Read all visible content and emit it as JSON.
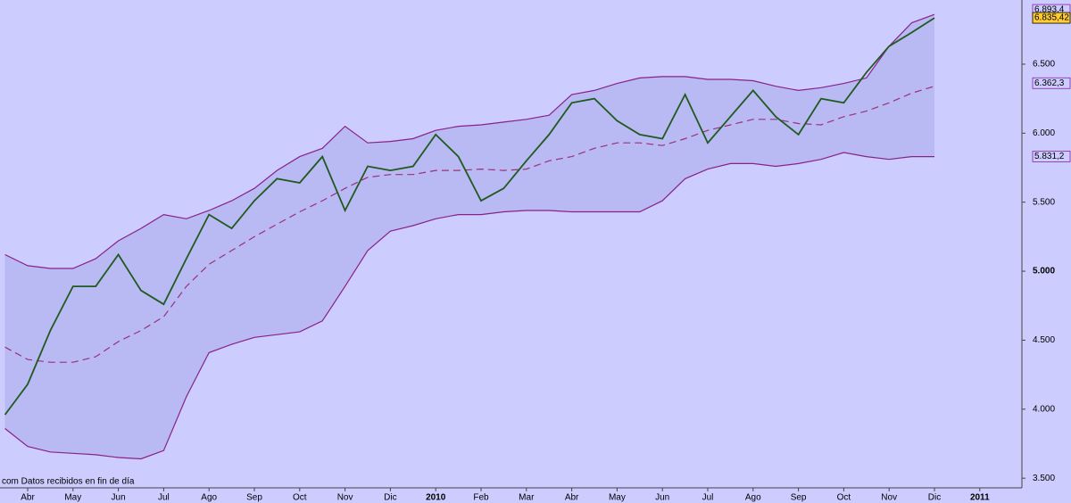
{
  "chart_data": {
    "type": "line",
    "categories": [
      null,
      "Abr",
      null,
      "May",
      null,
      "Jun",
      null,
      "Jul",
      null,
      "Ago",
      null,
      "Sep",
      null,
      "Oct",
      null,
      "Nov",
      null,
      "Dic",
      null,
      "2010",
      null,
      "Feb",
      null,
      "Mar",
      null,
      "Abr",
      null,
      "May",
      null,
      "Jun",
      null,
      "Jul",
      null,
      "Ago",
      null,
      "Sep",
      null,
      "Oct",
      null,
      "Nov",
      null,
      "Dic",
      null,
      "2011"
    ],
    "series": [
      {
        "color": "#882288",
        "fill": "#b9b9f3",
        "values": [
          5120,
          5040,
          5020,
          5020,
          5090,
          5220,
          5310,
          5410,
          5380,
          5440,
          5510,
          5600,
          5730,
          5830,
          5890,
          6050,
          5930,
          5940,
          5960,
          6020,
          6050,
          6060,
          6080,
          6100,
          6130,
          6280,
          6310,
          6360,
          6400,
          6410,
          6410,
          6390,
          6390,
          6380,
          6340,
          6310,
          6330,
          6360,
          6400,
          6630,
          6800,
          6860,
          null,
          null
        ]
      },
      {
        "color": "#882288",
        "values": [
          3860,
          3730,
          3690,
          3680,
          3670,
          3650,
          3640,
          3700,
          4090,
          4410,
          4470,
          4520,
          4540,
          4560,
          4640,
          4890,
          5150,
          5290,
          5330,
          5380,
          5410,
          5410,
          5430,
          5440,
          5440,
          5430,
          5430,
          5430,
          5430,
          5510,
          5670,
          5740,
          5780,
          5780,
          5760,
          5780,
          5810,
          5860,
          5830,
          5810,
          5830,
          5830,
          null,
          null
        ]
      },
      {
        "color": "#993377",
        "dashed": true,
        "values": [
          4450,
          4360,
          4340,
          4340,
          4380,
          4490,
          4570,
          4670,
          4890,
          5050,
          5150,
          5250,
          5340,
          5430,
          5510,
          5600,
          5680,
          5700,
          5700,
          5730,
          5730,
          5740,
          5730,
          5740,
          5800,
          5830,
          5890,
          5930,
          5930,
          5910,
          5960,
          6020,
          6060,
          6100,
          6100,
          6070,
          6060,
          6120,
          6160,
          6220,
          6290,
          6340,
          null,
          null
        ]
      },
      {
        "color": "#1f5a1f",
        "values": [
          3960,
          4180,
          4570,
          4890,
          4890,
          5120,
          4860,
          4760,
          5090,
          5410,
          5310,
          5510,
          5670,
          5640,
          5830,
          5440,
          5760,
          5730,
          5760,
          5990,
          5830,
          5510,
          5600,
          5800,
          5990,
          6220,
          6250,
          6090,
          5990,
          5960,
          6280,
          5930,
          6120,
          6310,
          6120,
          5990,
          6250,
          6220,
          6440,
          6630,
          6730,
          6835,
          null,
          null
        ]
      }
    ],
    "ylim": [
      3430,
      6965
    ],
    "yticks": [
      {
        "value": 3500,
        "label": "3.500"
      },
      {
        "value": 4000,
        "label": "4.000"
      },
      {
        "value": 4500,
        "label": "4.500"
      },
      {
        "value": 5000,
        "label": "5.000"
      },
      {
        "value": 5500,
        "label": "5.500"
      },
      {
        "value": 6000,
        "label": "6.000"
      },
      {
        "value": 6500,
        "label": "6.500"
      }
    ],
    "price_labels": [
      {
        "value": 6893.4,
        "label": "6.893,4",
        "color": "#8822aa",
        "background": "#ccccff"
      },
      {
        "value": 6835.42,
        "label": "6.835,42",
        "color": "#000000",
        "background": "#ffcc33"
      },
      {
        "value": 6362.3,
        "label": "6.362,3",
        "color": "#8822aa",
        "background": "#ccccff"
      },
      {
        "value": 5831.2,
        "label": "5.831,2",
        "color": "#8822aa",
        "background": "#ccccff"
      }
    ],
    "note": "com Datos recibidos en fin de día"
  }
}
